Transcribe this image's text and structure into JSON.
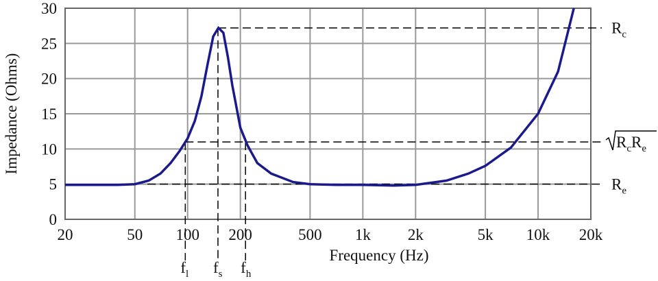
{
  "chart_data": {
    "type": "line",
    "xlabel": "Frequency (Hz)",
    "ylabel": "Impedance (Ohms)",
    "xscale": "log",
    "grid": true,
    "color": "#1a1a8c",
    "xlim": [
      20,
      20000
    ],
    "ylim": [
      0,
      30
    ],
    "xticks": [
      20,
      50,
      100,
      200,
      500,
      {
        "value": 1000,
        "label": "1k"
      },
      {
        "value": 2000,
        "label": "2k"
      },
      {
        "value": 5000,
        "label": "5k"
      },
      {
        "value": 10000,
        "label": "10k"
      },
      {
        "value": 20000,
        "label": "20k"
      }
    ],
    "yticks": [
      0,
      5,
      10,
      15,
      20,
      25,
      30
    ],
    "x": [
      20,
      40,
      50,
      60,
      70,
      80,
      90,
      100,
      110,
      120,
      130,
      140,
      150,
      160,
      170,
      180,
      200,
      220,
      250,
      300,
      400,
      500,
      700,
      1000,
      1500,
      2000,
      3000,
      4000,
      5000,
      7000,
      10000,
      13000,
      16000
    ],
    "values": [
      4.9,
      4.9,
      5.0,
      5.5,
      6.5,
      8.0,
      9.7,
      11.5,
      14,
      17.5,
      22,
      26,
      27.2,
      26.5,
      23,
      19,
      13,
      10.5,
      8,
      6.5,
      5.3,
      5.0,
      4.9,
      4.9,
      4.8,
      4.9,
      5.5,
      6.5,
      7.6,
      10.2,
      15,
      21,
      30
    ],
    "reference_lines": [
      {
        "y": 27.2,
        "x_start": 149,
        "label": [
          {
            "text": "R",
            "sub": "c"
          }
        ]
      },
      {
        "y": 11,
        "x_start": 97,
        "sqrt": true,
        "label": [
          {
            "text": "R",
            "sub": "c"
          },
          {
            "text": "R",
            "sub": "e"
          }
        ]
      },
      {
        "y": 5,
        "x_start": 59,
        "label": [
          {
            "text": "R",
            "sub": "e"
          }
        ]
      }
    ],
    "markers": [
      {
        "x": 97,
        "y": 11,
        "label": {
          "text": "f",
          "sub": "l"
        }
      },
      {
        "x": 149,
        "y": 27.2,
        "label": {
          "text": "f",
          "sub": "s"
        }
      },
      {
        "x": 214,
        "y": 11,
        "label": {
          "text": "f",
          "sub": "h"
        }
      }
    ]
  }
}
